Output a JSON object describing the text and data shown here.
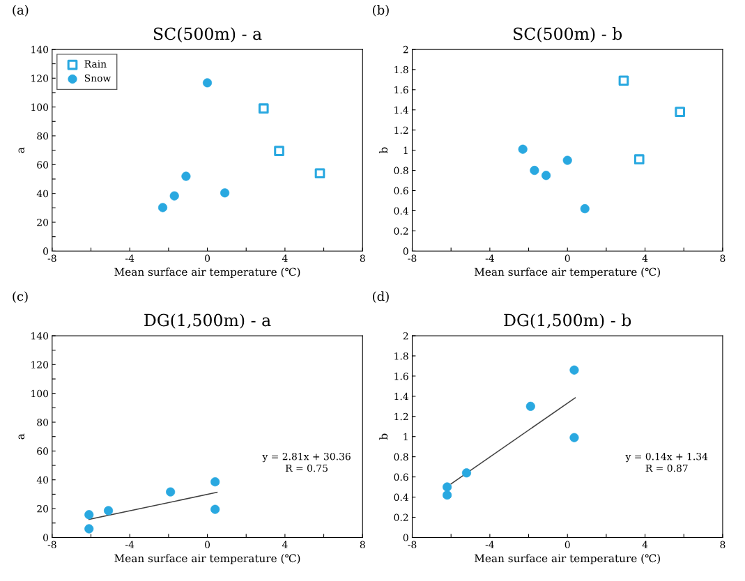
{
  "chart_data": [
    {
      "type": "scatter",
      "title": "SC(500m) - a",
      "xlabel": "Mean surface air temperature (℃)",
      "ylabel": "a",
      "annotations": [
        "(a)"
      ],
      "xlim": [
        -8,
        8
      ],
      "xticks": [
        -8,
        {
          "value": -6,
          "label": null
        },
        -4,
        {
          "value": -2,
          "label": null
        },
        0,
        {
          "value": 2,
          "label": null
        },
        4,
        {
          "value": 6,
          "label": null
        },
        8
      ],
      "ylim": [
        0,
        140
      ],
      "yticks": [
        0,
        {
          "value": 10,
          "label": null
        },
        20,
        {
          "value": 30,
          "label": null
        },
        40,
        {
          "value": 50,
          "label": null
        },
        60,
        {
          "value": 70,
          "label": null
        },
        80,
        {
          "value": 90,
          "label": null
        },
        100,
        {
          "value": 110,
          "label": null
        },
        120,
        {
          "value": 130,
          "label": null
        },
        140
      ],
      "legend": "top left",
      "grid": false,
      "series": [
        {
          "name": "Rain",
          "color": "#29a8e0",
          "marker": "square",
          "x": [
            2.9,
            3.7,
            5.8
          ],
          "values": [
            99,
            69.5,
            54
          ]
        },
        {
          "name": "Snow",
          "color": "#29a8e0",
          "marker": "circle",
          "x": [
            -2.3,
            -1.7,
            -1.1,
            0,
            0.9
          ],
          "values": [
            30.2,
            38.3,
            51.9,
            116.8,
            40.4
          ]
        }
      ]
    },
    {
      "type": "scatter",
      "title": "SC(500m) - b",
      "xlabel": "Mean surface air temperature (℃)",
      "ylabel": "b",
      "annotations": [
        "(b)"
      ],
      "xlim": [
        -8,
        8
      ],
      "xticks": [
        -8,
        {
          "value": -6,
          "label": null
        },
        -4,
        {
          "value": -2,
          "label": null
        },
        0,
        {
          "value": 2,
          "label": null
        },
        4,
        {
          "value": 6,
          "label": null
        },
        8
      ],
      "ylim": [
        0,
        2
      ],
      "yticks": [
        0,
        0.2,
        0.4,
        0.6,
        0.8,
        1,
        1.2,
        1.4,
        1.6,
        1.8,
        2
      ],
      "grid": false,
      "series": [
        {
          "color": "#29a8e0",
          "marker": "square",
          "x": [
            2.9,
            3.7,
            5.8
          ],
          "values": [
            1.69,
            0.91,
            1.38
          ]
        },
        {
          "color": "#29a8e0",
          "marker": "circle",
          "x": [
            -2.3,
            -1.7,
            -1.1,
            0,
            0.9
          ],
          "values": [
            1.01,
            0.8,
            0.75,
            0.9,
            0.42
          ]
        }
      ]
    },
    {
      "type": "scatter",
      "title": "DG(1,500m) - a",
      "xlabel": "Mean surface air temperature (℃)",
      "ylabel": "a",
      "annotations": [
        "(c)",
        "y = 2.81x + 30.36\nR = 0.75"
      ],
      "xlim": [
        -8,
        8
      ],
      "xticks": [
        -8,
        {
          "value": -6,
          "label": null
        },
        -4,
        {
          "value": -2,
          "label": null
        },
        0,
        {
          "value": 2,
          "label": null
        },
        4,
        {
          "value": 6,
          "label": null
        },
        8
      ],
      "ylim": [
        0,
        140
      ],
      "yticks": [
        0,
        {
          "value": 10,
          "label": null
        },
        20,
        {
          "value": 30,
          "label": null
        },
        40,
        {
          "value": 50,
          "label": null
        },
        60,
        {
          "value": 70,
          "label": null
        },
        80,
        {
          "value": 90,
          "label": null
        },
        100,
        {
          "value": 110,
          "label": null
        },
        120,
        {
          "value": 130,
          "label": null
        },
        140
      ],
      "grid": false,
      "series": [
        {
          "color": "#29a8e0",
          "marker": "circle",
          "x": [
            -6.1,
            -6.1,
            -5.1,
            -1.9,
            0.4,
            0.4
          ],
          "values": [
            15.8,
            6,
            18.6,
            31.6,
            38.6,
            19.5
          ]
        },
        {
          "type": "line",
          "color": "#404040",
          "marker": "none",
          "line_style": "solid",
          "x": [
            -6.1,
            0.5
          ],
          "values": [
            12.5,
            31.3
          ]
        }
      ]
    },
    {
      "type": "scatter",
      "title": "DG(1,500m) - b",
      "xlabel": "Mean surface air temperature (℃)",
      "ylabel": "b",
      "annotations": [
        "(d)",
        "y = 0.14x + 1.34\nR = 0.87"
      ],
      "xlim": [
        -8,
        8
      ],
      "xticks": [
        -8,
        {
          "value": -6,
          "label": null
        },
        -4,
        {
          "value": -2,
          "label": null
        },
        0,
        {
          "value": 2,
          "label": null
        },
        4,
        {
          "value": 6,
          "label": null
        },
        8
      ],
      "ylim": [
        0,
        2
      ],
      "yticks": [
        0,
        0.2,
        0.4,
        0.6,
        0.8,
        1,
        1.2,
        1.4,
        1.6,
        1.8,
        2
      ],
      "grid": false,
      "series": [
        {
          "color": "#29a8e0",
          "marker": "circle",
          "x": [
            -6.2,
            -6.2,
            -5.2,
            -1.9,
            0.35,
            0.35
          ],
          "values": [
            0.5,
            0.42,
            0.64,
            1.3,
            1.66,
            0.99
          ]
        },
        {
          "type": "line",
          "color": "#404040",
          "marker": "none",
          "line_style": "solid",
          "x": [
            -6.0,
            0.4
          ],
          "values": [
            0.53,
            1.385
          ]
        }
      ]
    }
  ]
}
